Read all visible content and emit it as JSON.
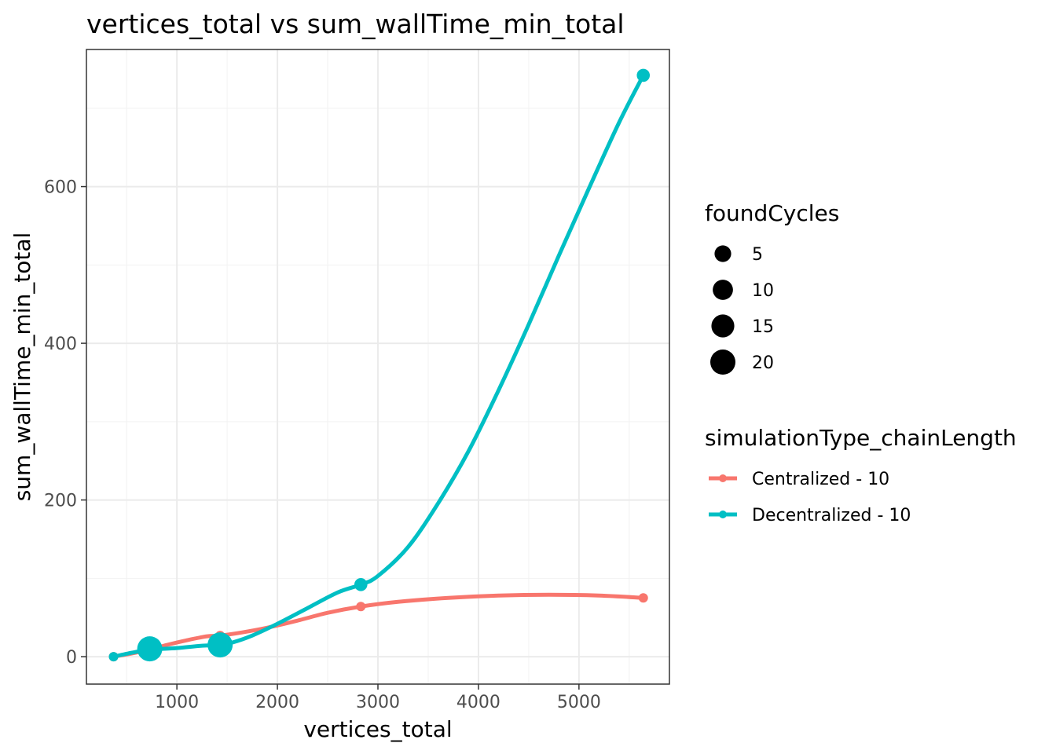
{
  "chart_data": {
    "type": "line",
    "title": "vertices_total  vs  sum_wallTime_min_total",
    "xlabel": "vertices_total",
    "ylabel": "sum_wallTime_min_total",
    "xlim": [
      100,
      5900
    ],
    "ylim": [
      -35,
      775
    ],
    "x_ticks": [
      1000,
      2000,
      3000,
      4000,
      5000
    ],
    "y_ticks": [
      0,
      200,
      400,
      600
    ],
    "grid": true,
    "series": [
      {
        "name": "Centralized - 10",
        "color": "#F8766D",
        "points": [
          {
            "x": 370,
            "y": 0,
            "foundCycles": 1
          },
          {
            "x": 730,
            "y": 9,
            "foundCycles": 1
          },
          {
            "x": 1430,
            "y": 27,
            "foundCycles": 1
          },
          {
            "x": 2830,
            "y": 64,
            "foundCycles": 1
          },
          {
            "x": 5640,
            "y": 75,
            "foundCycles": 1
          }
        ],
        "smooth": [
          [
            370,
            0
          ],
          [
            550,
            4
          ],
          [
            730,
            9
          ],
          [
            900,
            15
          ],
          [
            1100,
            21
          ],
          [
            1300,
            26
          ],
          [
            1430,
            27
          ],
          [
            1650,
            31
          ],
          [
            1900,
            37
          ],
          [
            2200,
            46
          ],
          [
            2500,
            56
          ],
          [
            2830,
            64
          ],
          [
            3200,
            70
          ],
          [
            3700,
            75
          ],
          [
            4200,
            78
          ],
          [
            4700,
            79
          ],
          [
            5200,
            78
          ],
          [
            5640,
            75
          ]
        ]
      },
      {
        "name": "Decentralized - 10",
        "color": "#00BFC4",
        "points": [
          {
            "x": 370,
            "y": 0,
            "foundCycles": 1
          },
          {
            "x": 730,
            "y": 10,
            "foundCycles": 20
          },
          {
            "x": 1430,
            "y": 15,
            "foundCycles": 20
          },
          {
            "x": 2830,
            "y": 92,
            "foundCycles": 2
          },
          {
            "x": 5640,
            "y": 742,
            "foundCycles": 2
          }
        ],
        "smooth": [
          [
            370,
            0
          ],
          [
            550,
            5
          ],
          [
            730,
            9
          ],
          [
            1000,
            11
          ],
          [
            1250,
            14
          ],
          [
            1430,
            15
          ],
          [
            1550,
            18
          ],
          [
            1750,
            27
          ],
          [
            2000,
            42
          ],
          [
            2300,
            62
          ],
          [
            2600,
            82
          ],
          [
            2830,
            92
          ],
          [
            3000,
            103
          ],
          [
            3300,
            140
          ],
          [
            3600,
            196
          ],
          [
            3900,
            262
          ],
          [
            4200,
            340
          ],
          [
            4500,
            424
          ],
          [
            4800,
            512
          ],
          [
            5100,
            598
          ],
          [
            5400,
            682
          ],
          [
            5640,
            742
          ]
        ]
      }
    ],
    "size_legend": {
      "title": "foundCycles",
      "entries": [
        {
          "value": 5,
          "label": "5"
        },
        {
          "value": 10,
          "label": "10"
        },
        {
          "value": 15,
          "label": "15"
        },
        {
          "value": 20,
          "label": "20"
        }
      ]
    },
    "color_legend": {
      "title": "simulationType_chainLength",
      "placement": "right"
    }
  }
}
